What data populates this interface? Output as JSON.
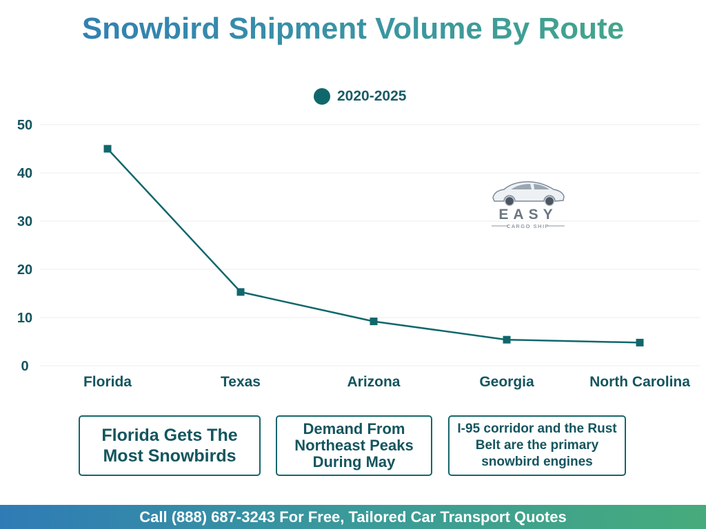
{
  "page": {
    "title": "Snowbird Shipment Volume By Route",
    "footer": "Call (888) 687-3243 For Free, Tailored Car Transport Quotes"
  },
  "colors": {
    "series": "#10676b",
    "text": "#14555e",
    "grid": "#ececec"
  },
  "chart_data": {
    "type": "line",
    "categories": [
      "Florida",
      "Texas",
      "Arizona",
      "Georgia",
      "North Carolina"
    ],
    "series": [
      {
        "name": "2020-2025",
        "values": [
          45,
          15.3,
          9.2,
          5.4,
          4.8
        ],
        "marker": "square"
      }
    ],
    "yticks": [
      0,
      10,
      20,
      30,
      40,
      50
    ],
    "ylim": [
      0,
      50
    ],
    "grid": true,
    "legend": "top-center"
  },
  "logo": {
    "brand": "EASY",
    "tagline": "CARGO SHIP"
  },
  "notes": [
    "Florida Gets The Most Snowbirds",
    "Demand From Northeast Peaks During May",
    "I-95 corridor and the Rust Belt are the primary snowbird engines"
  ]
}
